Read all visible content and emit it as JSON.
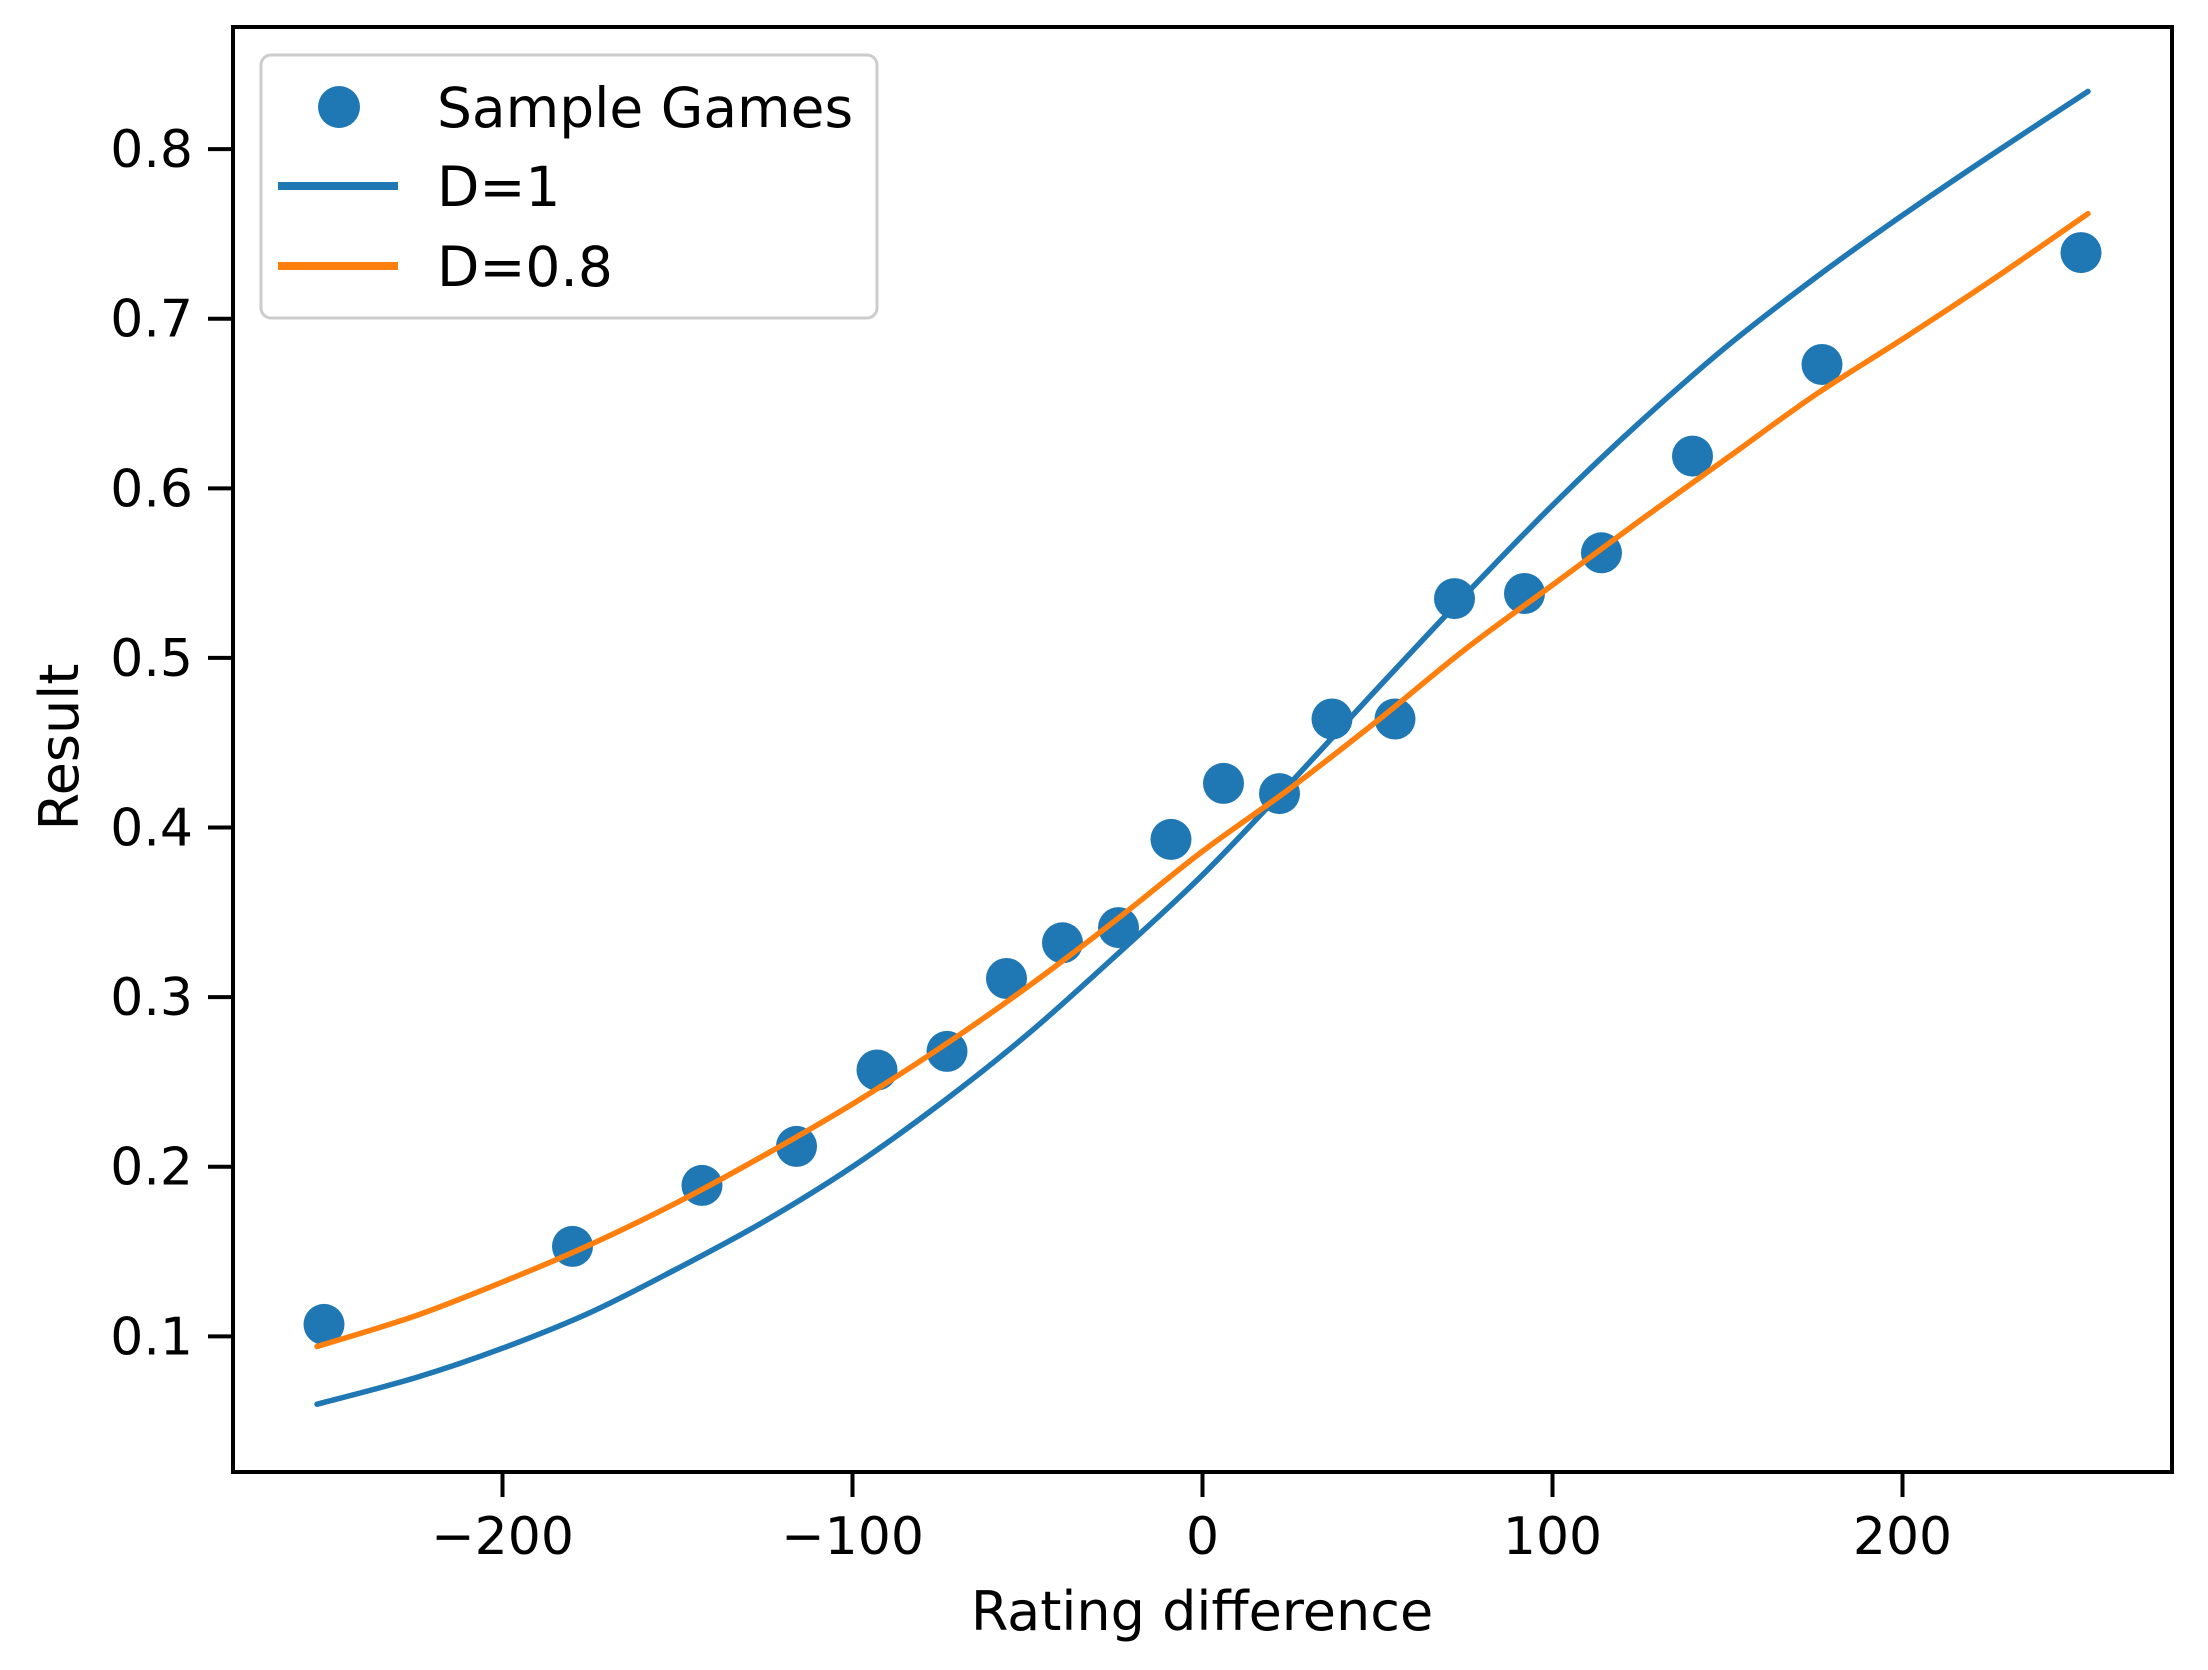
{
  "chart_data": {
    "type": "scatter",
    "title": "",
    "xlabel": "Rating difference",
    "ylabel": "Result",
    "xlim": [
      -277,
      277
    ],
    "ylim": [
      0.02,
      0.872
    ],
    "grid": false,
    "legend_position": "upper left",
    "x_ticks": {
      "values": [
        -200,
        -100,
        0,
        100,
        200
      ],
      "labels": [
        "−200",
        "−100",
        "0",
        "100",
        "200"
      ]
    },
    "y_ticks": {
      "values": [
        0.1,
        0.2,
        0.3,
        0.4,
        0.5,
        0.6,
        0.7,
        0.8
      ],
      "labels": [
        "0.1",
        "0.2",
        "0.3",
        "0.4",
        "0.5",
        "0.6",
        "0.7",
        "0.8"
      ]
    },
    "colors": {
      "scatter": "#1f77b4",
      "d1_line": "#1f77b4",
      "d08_line": "#ff7f0e",
      "spine": "#000000",
      "legend_border": "#cccccc",
      "background": "#ffffff"
    },
    "legend": {
      "entries": [
        {
          "label": "Sample Games",
          "kind": "marker",
          "color": "#1f77b4"
        },
        {
          "label": "D=1",
          "kind": "line",
          "color": "#1f77b4"
        },
        {
          "label": "D=0.8",
          "kind": "line",
          "color": "#ff7f0e"
        }
      ]
    },
    "series": [
      {
        "name": "Sample Games",
        "kind": "scatter",
        "color": "#1f77b4",
        "points": [
          [
            -251,
            0.107
          ],
          [
            -180,
            0.153
          ],
          [
            -143,
            0.189
          ],
          [
            -116,
            0.212
          ],
          [
            -93,
            0.257
          ],
          [
            -73,
            0.268
          ],
          [
            -56,
            0.311
          ],
          [
            -40,
            0.332
          ],
          [
            -24,
            0.341
          ],
          [
            -9,
            0.393
          ],
          [
            6,
            0.426
          ],
          [
            22,
            0.42
          ],
          [
            37,
            0.464
          ],
          [
            55,
            0.464
          ],
          [
            72,
            0.535
          ],
          [
            92,
            0.538
          ],
          [
            114,
            0.562
          ],
          [
            140,
            0.619
          ],
          [
            177,
            0.673
          ],
          [
            251,
            0.739
          ]
        ]
      },
      {
        "name": "D=1",
        "kind": "line",
        "color": "#1f77b4",
        "points": [
          [
            -253,
            0.06
          ],
          [
            -225,
            0.0755
          ],
          [
            -200,
            0.093
          ],
          [
            -175,
            0.114
          ],
          [
            -150,
            0.14
          ],
          [
            -125,
            0.168
          ],
          [
            -100,
            0.2
          ],
          [
            -75,
            0.237
          ],
          [
            -50,
            0.278
          ],
          [
            -25,
            0.324
          ],
          [
            0,
            0.372
          ],
          [
            25,
            0.426
          ],
          [
            50,
            0.482
          ],
          [
            75,
            0.537
          ],
          [
            100,
            0.59
          ],
          [
            125,
            0.639
          ],
          [
            150,
            0.684
          ],
          [
            175,
            0.724
          ],
          [
            200,
            0.761
          ],
          [
            225,
            0.796
          ],
          [
            253,
            0.834
          ]
        ]
      },
      {
        "name": "D=0.8",
        "kind": "line",
        "color": "#ff7f0e",
        "points": [
          [
            -253,
            0.094
          ],
          [
            -225,
            0.112
          ],
          [
            -200,
            0.132
          ],
          [
            -175,
            0.154
          ],
          [
            -150,
            0.179
          ],
          [
            -125,
            0.207
          ],
          [
            -100,
            0.237
          ],
          [
            -75,
            0.27
          ],
          [
            -50,
            0.306
          ],
          [
            -25,
            0.345
          ],
          [
            0,
            0.386
          ],
          [
            25,
            0.423
          ],
          [
            50,
            0.463
          ],
          [
            75,
            0.505
          ],
          [
            100,
            0.543
          ],
          [
            125,
            0.581
          ],
          [
            150,
            0.618
          ],
          [
            175,
            0.655
          ],
          [
            200,
            0.688
          ],
          [
            225,
            0.722
          ],
          [
            253,
            0.762
          ]
        ]
      }
    ]
  }
}
